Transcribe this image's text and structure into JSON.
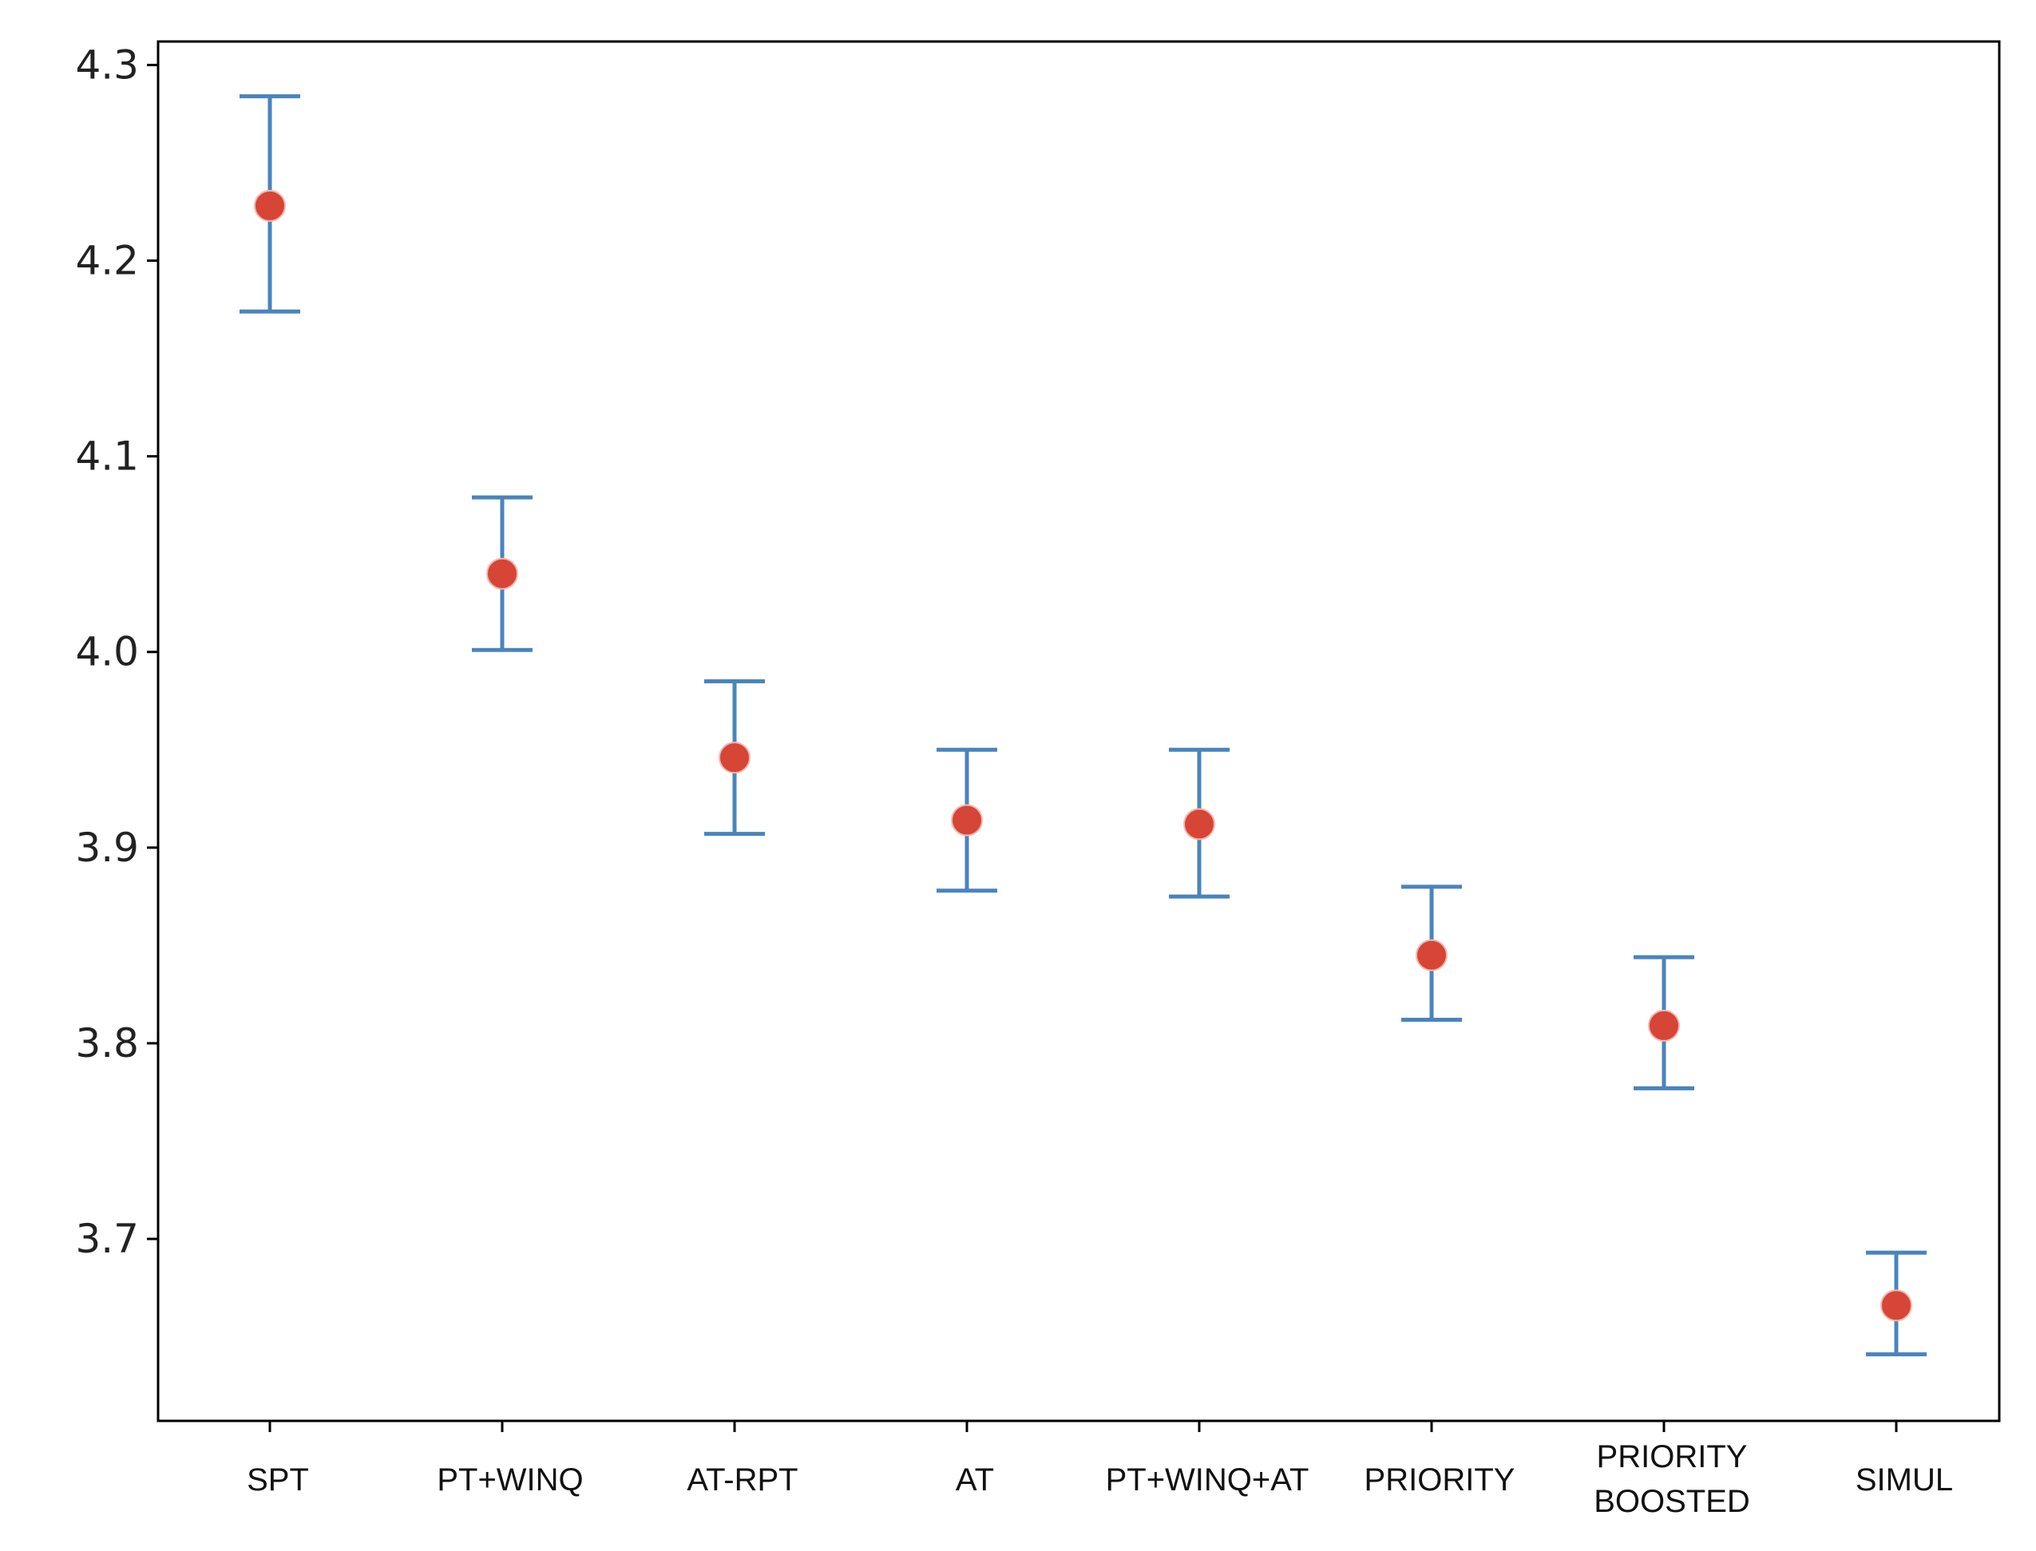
{
  "chart_data": {
    "type": "scatter",
    "title": "",
    "xlabel": "",
    "ylabel": "",
    "categories": [
      [
        "SPT"
      ],
      [
        "PT+WINQ"
      ],
      [
        "AT-RPT"
      ],
      [
        "AT"
      ],
      [
        "PT+WINQ+AT"
      ],
      [
        "PRIORITY"
      ],
      [
        "PRIORITY",
        "BOOSTED"
      ],
      [
        "SIMUL"
      ]
    ],
    "values": [
      4.228,
      4.04,
      3.946,
      3.914,
      3.912,
      3.845,
      3.809,
      3.666
    ],
    "error_upper": [
      4.284,
      4.079,
      3.985,
      3.95,
      3.95,
      3.88,
      3.844,
      3.693
    ],
    "error_lower": [
      4.174,
      4.001,
      3.907,
      3.878,
      3.875,
      3.812,
      3.777,
      3.641
    ],
    "ylim": [
      3.607,
      4.312
    ],
    "yticks": [
      "3.7",
      "3.8",
      "3.9",
      "4.0",
      "4.1",
      "4.2",
      "4.3"
    ],
    "grid": false,
    "colors": {
      "point": "#d64536",
      "errorbar": "#4a84bd",
      "axis": "#000000"
    }
  }
}
